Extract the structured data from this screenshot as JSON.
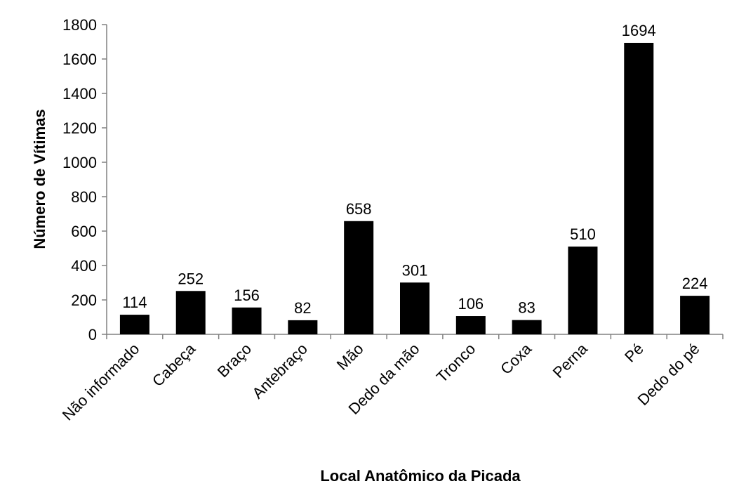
{
  "chart_data": {
    "type": "bar",
    "title": "",
    "xlabel": "Local Anatômico da Picada",
    "ylabel": "Número de Vítimas",
    "ylim": [
      0,
      1800
    ],
    "yticks": [
      0,
      200,
      400,
      600,
      800,
      1000,
      1200,
      1400,
      1600,
      1800
    ],
    "categories": [
      "Não informado",
      "Cabeça",
      "Braço",
      "Antebraço",
      "Mão",
      "Dedo da mão",
      "Tronco",
      "Coxa",
      "Perna",
      "Pé",
      "Dedo do pé"
    ],
    "values": [
      114,
      252,
      156,
      82,
      658,
      301,
      106,
      83,
      510,
      1694,
      224
    ],
    "data_labels": [
      "114",
      "252",
      "156",
      "82",
      "658",
      "301",
      "106",
      "83",
      "510",
      "1694",
      "224"
    ],
    "bar_color": "#000000",
    "grid": false,
    "legend": "none"
  }
}
